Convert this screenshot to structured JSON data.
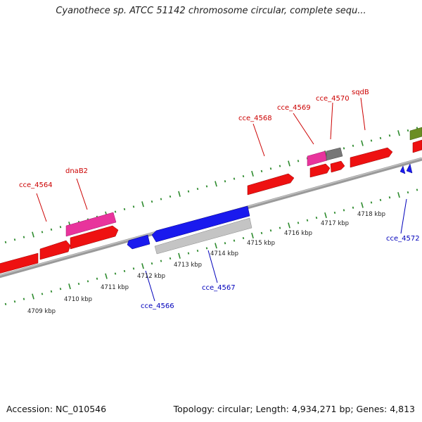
{
  "title": "Cyanothece sp. ATCC 51142 chromosome circular, complete sequ...",
  "footer": {
    "accession": "Accession: NC_010546",
    "topology": "Topology: circular; Length: 4,934,271 bp; Genes: 4,813"
  },
  "colors": {
    "backbone": "#8a8a8a",
    "tick": "#2e8b2e",
    "forward_label": "#cc0000",
    "reverse_label": "#0000bb",
    "red_gene": "#ee1111",
    "pink_gene": "#e8349c",
    "grey_gene": "#777777",
    "light_grey_gene": "#c4c4c4",
    "blue_gene": "#1a1aee",
    "olive_gene": "#6b8e23"
  },
  "scale_labels": [
    "4709 kbp",
    "4710 kbp",
    "4711 kbp",
    "4712 kbp",
    "4713 kbp",
    "4714 kbp",
    "4715 kbp",
    "4716 kbp",
    "4717 kbp",
    "4718 kbp"
  ],
  "gene_labels": [
    {
      "text": "cce_4564",
      "strand": "forward"
    },
    {
      "text": "dnaB2",
      "strand": "forward"
    },
    {
      "text": "cce_4568",
      "strand": "forward"
    },
    {
      "text": "cce_4569",
      "strand": "forward"
    },
    {
      "text": "cce_4570",
      "strand": "forward"
    },
    {
      "text": "sqdB",
      "strand": "forward"
    },
    {
      "text": "cce_4566",
      "strand": "reverse"
    },
    {
      "text": "cce_4567",
      "strand": "reverse"
    },
    {
      "text": "cce_4572",
      "strand": "reverse"
    }
  ]
}
